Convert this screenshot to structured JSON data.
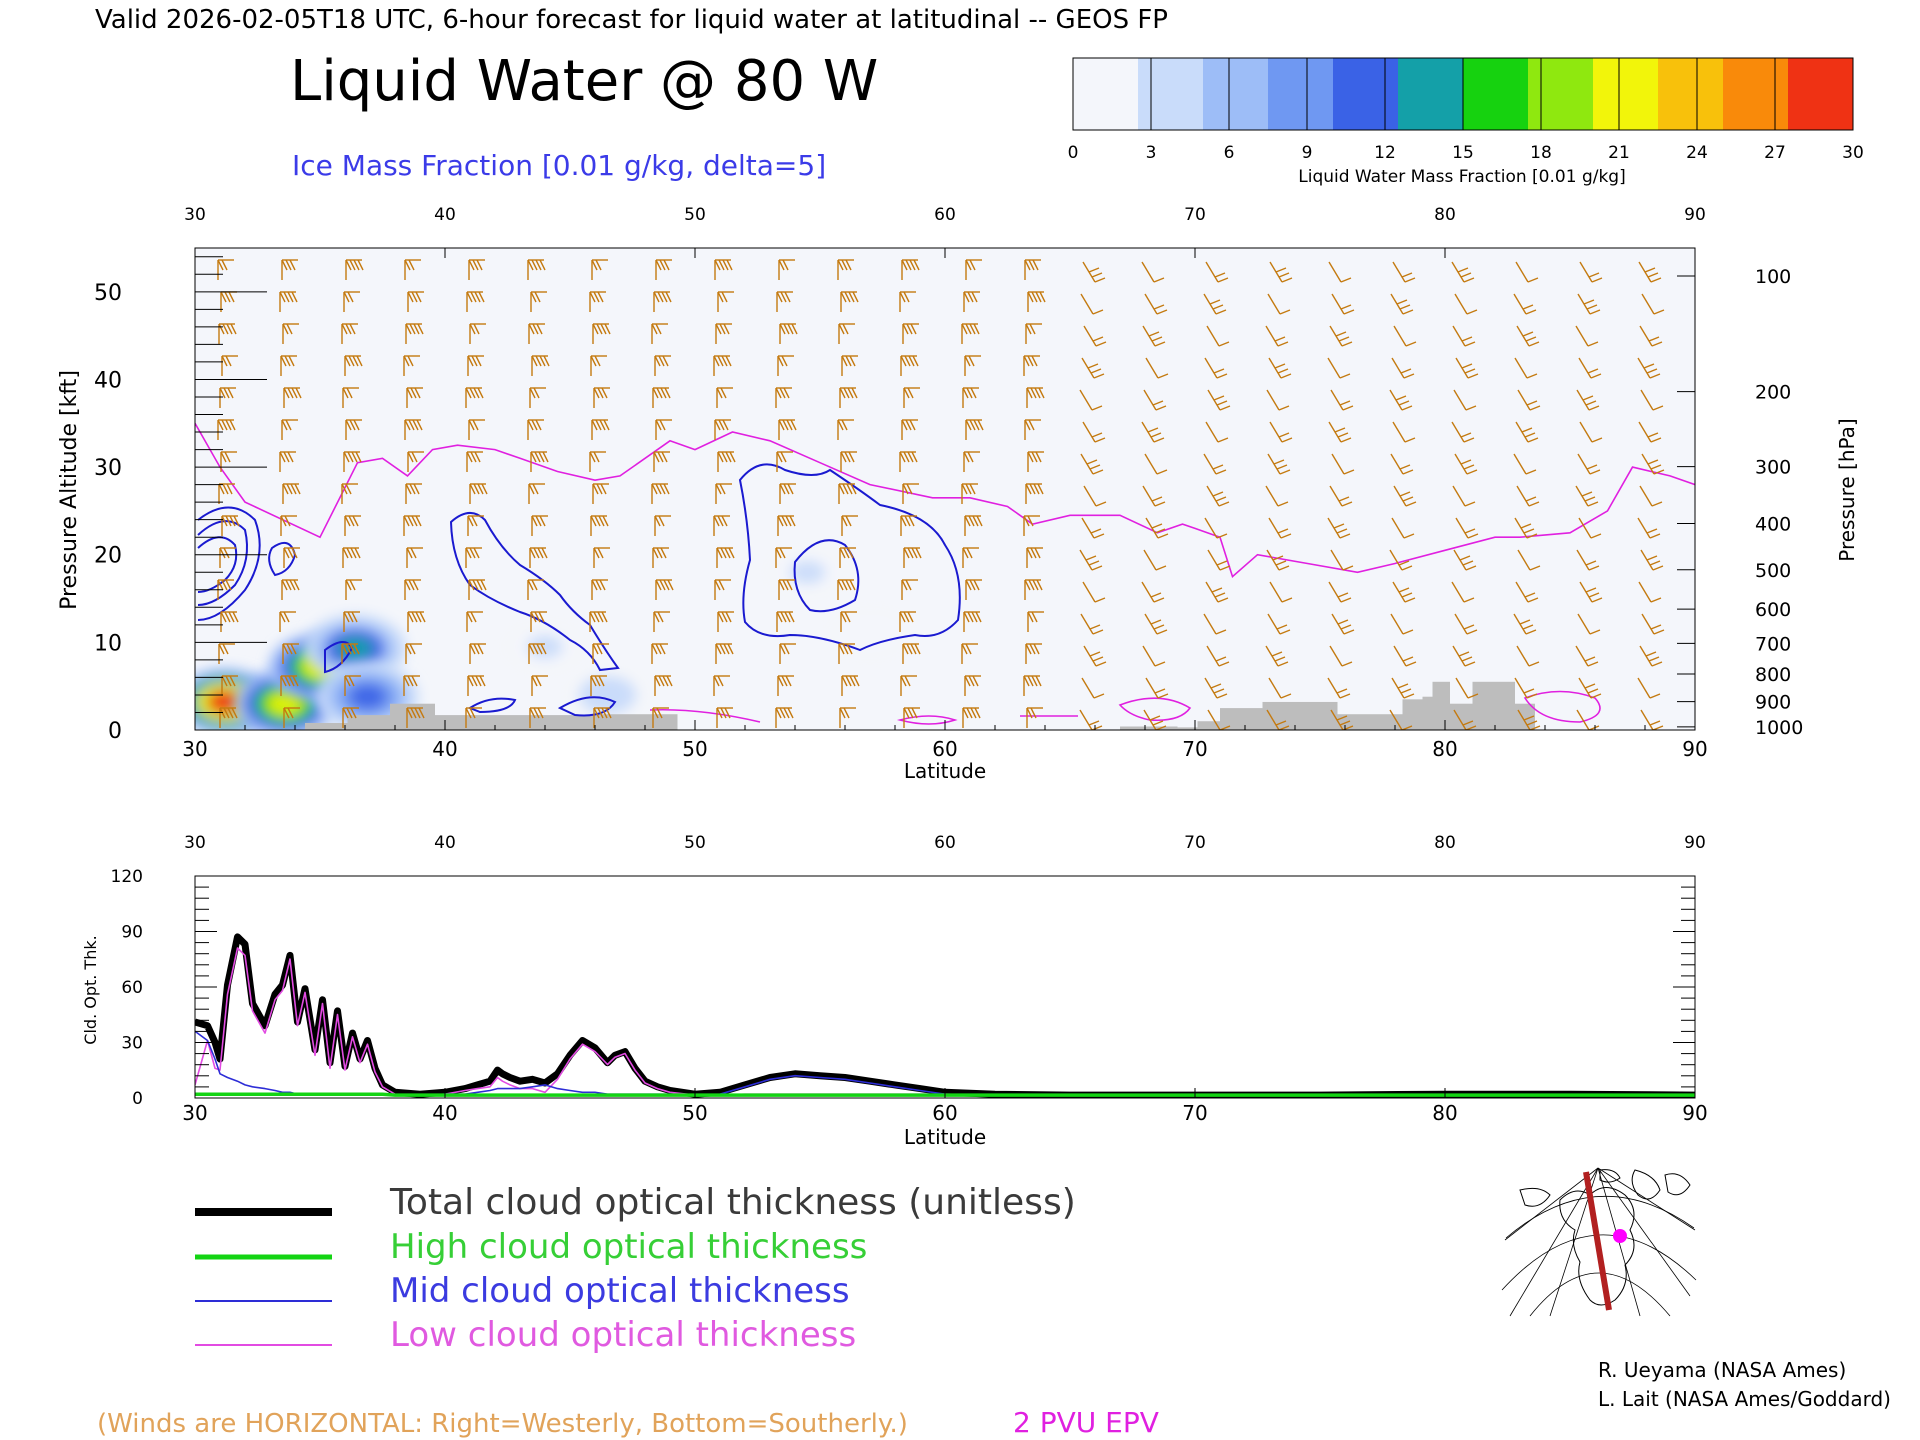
{
  "header": {
    "valid_line": "Valid 2026-02-05T18 UTC, 6-hour forecast for liquid water at latitudinal -- GEOS FP",
    "main_title": "Liquid Water @ 80 W",
    "ice_label": "Ice Mass Fraction [0.01 g/kg, delta=5]"
  },
  "colorbar": {
    "label": "Liquid Water Mass Fraction [0.01 g/kg]",
    "ticks": [
      "0",
      "3",
      "6",
      "9",
      "12",
      "15",
      "18",
      "21",
      "24",
      "27",
      "30"
    ],
    "colors": [
      "#f4f6fb",
      "#c9dcfa",
      "#9dbdf7",
      "#6f98f2",
      "#3a62e6",
      "#14a0a8",
      "#16d20f",
      "#8fe80f",
      "#f2f50a",
      "#f8c10b",
      "#f98a0a",
      "#ef3214"
    ]
  },
  "winds_note": "(Winds are HORIZONTAL: Right=Westerly, Bottom=Southerly.)",
  "pvu_label": "2 PVU EPV",
  "credits": [
    "R. Ueyama (NASA Ames)",
    "L. Lait (NASA Ames/Goddard)"
  ],
  "legend": [
    {
      "label": "Total cloud optical thickness (unitless)",
      "color": "#000000",
      "text_color": "#3a3a3a"
    },
    {
      "label": "High cloud optical thickness",
      "color": "#13d413",
      "text_color": "#36cf36"
    },
    {
      "label": "Mid cloud optical thickness",
      "color": "#2d2dd6",
      "text_color": "#3b3be0"
    },
    {
      "label": "Low cloud optical thickness",
      "color": "#e24be2",
      "text_color": "#e05ae0"
    }
  ],
  "colors": {
    "wind_barbs": "#c47a10",
    "epv_contour": "#e020e0",
    "ice_contour": "#1a1ad0",
    "terrain": "#bdbdbd"
  },
  "chart_data": [
    {
      "type": "heatmap",
      "xlabel": "Latitude",
      "ylabel": "Pressure Altitude [kft]",
      "ylabel_right": "Pressure [hPa]",
      "xlim": [
        30,
        90
      ],
      "ylim": [
        0,
        55
      ],
      "x_ticks": [
        "30",
        "40",
        "50",
        "60",
        "70",
        "80",
        "90"
      ],
      "y_ticks": [
        "0",
        "10",
        "20",
        "30",
        "40",
        "50"
      ],
      "pressure_ticks": [
        "100",
        "200",
        "300",
        "400",
        "500",
        "600",
        "700",
        "800",
        "900",
        "1000"
      ],
      "liquid_water_blobs": [
        {
          "lat": 31.2,
          "alt": 3.2,
          "peak": 28
        },
        {
          "lat": 33.6,
          "alt": 3.0,
          "peak": 22
        },
        {
          "lat": 35.0,
          "alt": 7.2,
          "peak": 20
        },
        {
          "lat": 36.4,
          "alt": 9.3,
          "peak": 14
        },
        {
          "lat": 36.9,
          "alt": 3.8,
          "peak": 12
        },
        {
          "lat": 44.0,
          "alt": 9.5,
          "peak": 3
        },
        {
          "lat": 46.5,
          "alt": 4.0,
          "peak": 4
        },
        {
          "lat": 54.5,
          "alt": 18.0,
          "peak": 3
        },
        {
          "lat": 57.0,
          "alt": 11.0,
          "peak": 2
        }
      ],
      "epv_2pvu_altitude": {
        "lat": [
          30,
          31,
          32,
          35,
          36.5,
          37.5,
          38.5,
          39.5,
          40.5,
          42,
          43,
          44.5,
          46,
          47,
          49,
          50,
          51.5,
          53,
          55,
          57,
          59.5,
          61,
          62.5,
          63.5,
          65,
          67,
          68.5,
          69.5,
          70,
          71,
          71.5,
          72.5,
          74.5,
          76.5,
          78,
          80,
          82,
          83,
          85,
          86.5,
          87.5,
          89,
          90
        ],
        "alt": [
          35,
          30,
          26,
          22,
          30.5,
          31,
          29,
          32,
          32.5,
          32,
          31,
          29.5,
          28.5,
          29,
          33,
          32,
          34,
          33,
          30.5,
          28,
          26.5,
          26.5,
          25.5,
          23.5,
          24.5,
          24.5,
          22.5,
          23.5,
          23,
          22,
          17.5,
          20,
          19,
          18,
          19,
          20.5,
          22,
          22,
          22.5,
          25,
          30,
          29,
          28
        ]
      },
      "terrain_kft": {
        "lat": [
          34.4,
          36.1,
          37.8,
          39.6,
          42.8,
          45.8,
          49.3,
          67.0,
          69.3,
          70.1,
          71.0,
          72.7,
          75.7,
          76.1,
          78.3,
          79.1,
          79.5,
          80.2,
          81.1,
          82.8
        ],
        "alt": [
          0.8,
          1.7,
          3.0,
          1.7,
          1.7,
          1.8,
          1.7,
          0.4,
          0.3,
          1.0,
          2.5,
          3.2,
          1.8,
          1.8,
          3.5,
          3.8,
          5.5,
          3.0,
          5.5,
          3.0
        ]
      }
    },
    {
      "type": "line",
      "xlabel": "Latitude",
      "ylabel": "Cld. Opt. Thk.",
      "xlim": [
        30,
        90
      ],
      "ylim": [
        0,
        120
      ],
      "x_ticks": [
        "30",
        "40",
        "50",
        "60",
        "70",
        "80",
        "90"
      ],
      "y_ticks": [
        "0",
        "30",
        "60",
        "90",
        "120"
      ],
      "x": [
        30,
        30.5,
        30.8,
        31,
        31.3,
        31.7,
        32,
        32.3,
        32.8,
        33.2,
        33.5,
        33.8,
        34.1,
        34.4,
        34.8,
        35.1,
        35.4,
        35.7,
        36,
        36.3,
        36.6,
        36.9,
        37.2,
        37.5,
        38,
        39,
        40,
        40.8,
        41.3,
        41.8,
        42.1,
        42.3,
        42.6,
        43,
        43.5,
        44,
        44.5,
        45,
        45.5,
        46,
        46.5,
        46.8,
        47.2,
        47.6,
        48,
        48.5,
        49,
        50,
        51,
        52,
        53,
        54,
        55,
        56,
        57,
        58,
        59,
        60,
        62,
        65,
        70,
        75,
        80,
        85,
        90
      ],
      "series": [
        {
          "name": "Total cloud optical thickness (unitless)",
          "values": [
            40,
            38,
            29,
            20,
            60,
            86,
            82,
            50,
            38,
            55,
            60,
            76,
            40,
            58,
            25,
            52,
            18,
            46,
            16,
            34,
            20,
            30,
            15,
            6,
            2,
            1,
            2,
            4,
            6,
            8,
            14,
            12,
            10,
            8,
            9,
            7,
            12,
            22,
            30,
            26,
            18,
            22,
            24,
            15,
            8,
            5,
            3,
            1,
            2,
            6,
            10,
            12,
            11,
            10,
            8,
            6,
            4,
            2,
            1,
            0.5,
            0.5,
            0.5,
            1,
            1,
            0.5
          ]
        },
        {
          "name": "High cloud optical thickness",
          "values": [
            1,
            1,
            1,
            1,
            1,
            1,
            1,
            1,
            1,
            1,
            1,
            1,
            1,
            1,
            1,
            1,
            1,
            1,
            1,
            1,
            1,
            1,
            1,
            1,
            0.5,
            0.5,
            0.5,
            0.5,
            0.5,
            0.5,
            0.5,
            0.5,
            0.5,
            0.5,
            0.5,
            0.5,
            0.5,
            0.5,
            0.5,
            0.5,
            0.5,
            0.5,
            0.5,
            0.5,
            0.5,
            0.5,
            0.5,
            0.5,
            0.5,
            0.5,
            0.5,
            0.5,
            0.5,
            0.5,
            0.5,
            0.5,
            0.5,
            0.5,
            0.5,
            0.5,
            0.5,
            0.5,
            0.5,
            0.5,
            0.5
          ]
        },
        {
          "name": "Mid cloud optical thickness",
          "values": [
            35,
            30,
            20,
            12,
            10,
            8,
            6,
            5,
            4,
            3,
            2,
            2,
            1,
            1,
            1,
            1,
            1,
            1,
            1,
            1,
            1,
            1,
            1,
            1,
            0.5,
            0.5,
            1,
            1,
            2,
            3,
            4,
            4,
            4,
            4,
            5,
            6,
            4,
            3,
            2,
            2,
            1,
            1,
            1,
            1,
            1,
            1,
            1,
            0.5,
            1,
            5,
            9,
            11,
            10,
            9,
            7,
            5,
            3,
            1,
            0.5,
            0.5,
            0.5,
            0.5,
            0.5,
            0.5,
            0.5
          ]
        },
        {
          "name": "Low cloud optical thickness",
          "values": [
            6,
            30,
            15,
            14,
            55,
            80,
            76,
            46,
            34,
            52,
            57,
            74,
            38,
            56,
            22,
            50,
            15,
            44,
            14,
            32,
            18,
            28,
            13,
            5,
            1,
            0.5,
            1,
            3,
            4,
            5,
            10,
            8,
            6,
            4,
            4,
            2,
            9,
            20,
            28,
            24,
            17,
            21,
            23,
            14,
            7,
            4,
            2,
            0.5,
            0.5,
            1,
            1,
            1,
            1,
            1,
            1,
            1,
            1,
            1,
            0.5,
            0.5,
            0.5,
            0.5,
            0.5,
            0.5,
            0.5
          ]
        }
      ]
    }
  ]
}
